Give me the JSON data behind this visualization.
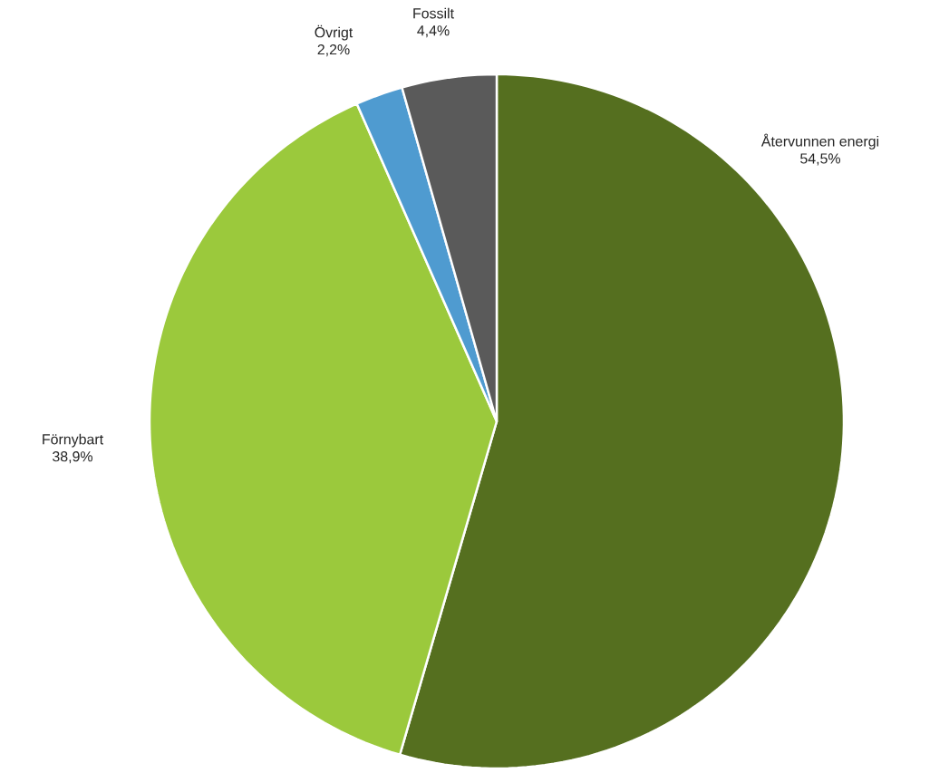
{
  "chart_data": {
    "type": "pie",
    "categories": [
      "Återvunnen energi",
      "Förnybart",
      "Övrigt",
      "Fossilt"
    ],
    "values": [
      54.5,
      38.9,
      2.2,
      4.4
    ],
    "colors": [
      "#556f1f",
      "#9bc93c",
      "#4f9bd0",
      "#5a5a5a"
    ],
    "value_labels": [
      "54,5%",
      "38,9%",
      "2,2%",
      "4,4%"
    ]
  }
}
